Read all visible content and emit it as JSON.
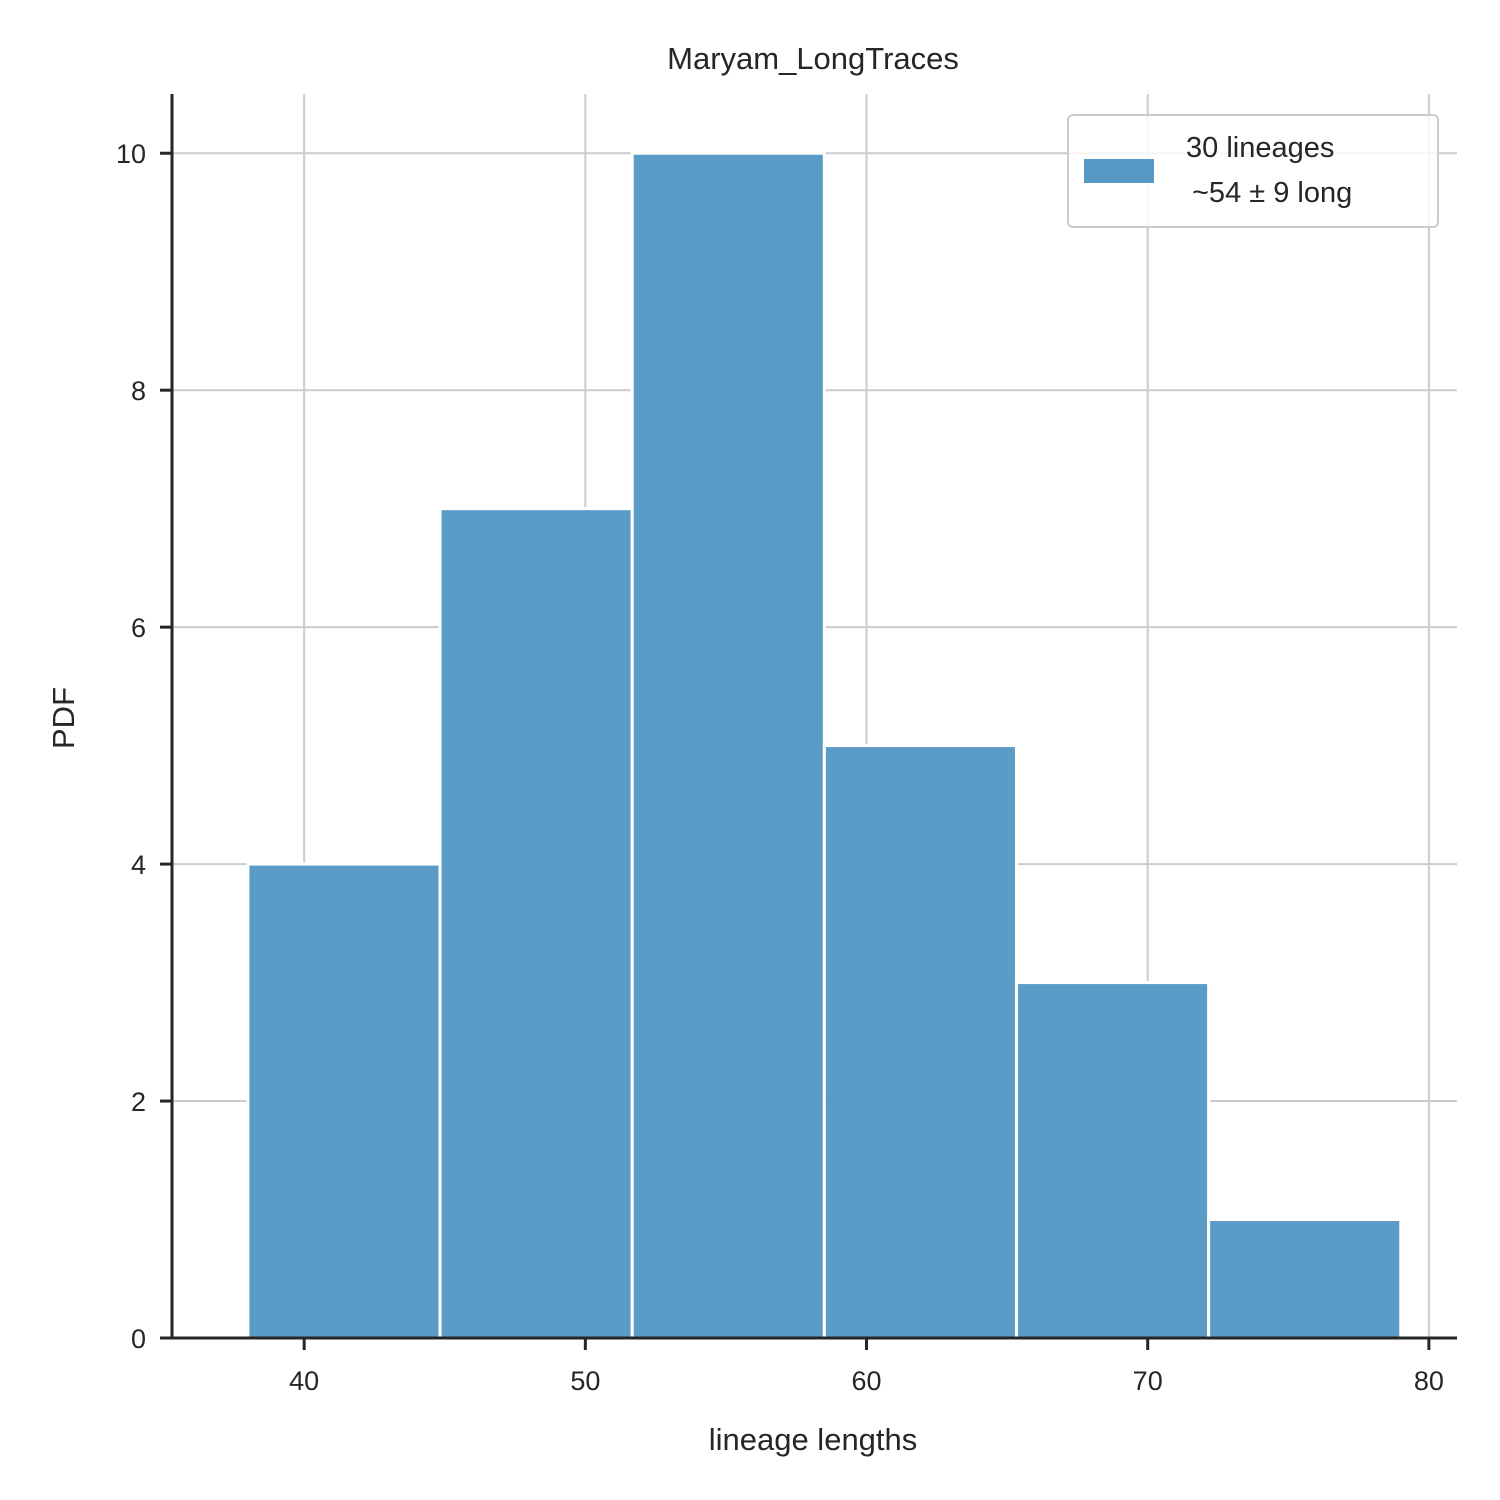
{
  "chart_data": {
    "type": "bar",
    "title": "Maryam_LongTraces",
    "xlabel": "lineage lengths",
    "ylabel": "PDF",
    "bin_edges": [
      38.0,
      44.833,
      51.667,
      58.5,
      65.333,
      72.167,
      79.0
    ],
    "values": [
      4,
      7,
      10,
      5,
      3,
      1
    ],
    "xlim": [
      35.3,
      81.0
    ],
    "ylim": [
      0,
      10.5
    ],
    "xticks": [
      40,
      50,
      60,
      70,
      80
    ],
    "yticks": [
      0,
      2,
      4,
      6,
      8,
      10
    ],
    "grid": true,
    "legend": {
      "position": "top-right",
      "line1": "30 lineages",
      "line2": "~54 ± 9 long"
    },
    "colors": {
      "bar": "#5799c6",
      "bar_edge": "#ffffff",
      "grid": "#cccccc",
      "axis": "#262626"
    }
  }
}
